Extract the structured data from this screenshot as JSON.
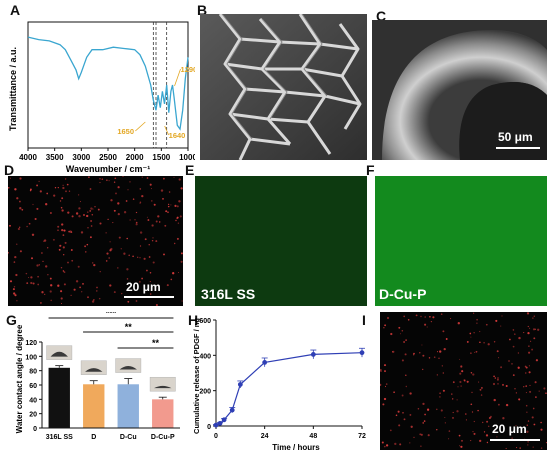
{
  "panels": {
    "A": "A",
    "B": "B",
    "C": "C",
    "D": "D",
    "E": "E",
    "F": "F",
    "G": "G",
    "H": "H",
    "I": "I"
  },
  "colors": {
    "ftir_line": "#3aa6d0",
    "ftir_annot": "#e3a825",
    "bar_316L": "#111111",
    "bar_D": "#f0a95c",
    "bar_DCu": "#8fb1dc",
    "bar_DCuP": "#f29a8e",
    "release_line": "#2f3fb5",
    "dot_red": "#d43a3a",
    "green_E": "#0d3a10",
    "green_F": "#138a1e"
  },
  "images": {
    "C_scale": "50 μm",
    "D_scale": "20 μm",
    "E_label": "316L SS",
    "F_label": "D-Cu-P",
    "I_scale": "20 μm"
  },
  "chart_data": [
    {
      "type": "line",
      "panel": "A",
      "xlabel": "Wavenumber / cm⁻¹",
      "ylabel": "Transmittance / a.u.",
      "xlim": [
        4000,
        1000
      ],
      "x_ticks": [
        "4000",
        "3500",
        "3000",
        "2500",
        "2000",
        "1500",
        "1000"
      ],
      "x": [
        4000,
        3800,
        3600,
        3400,
        3300,
        3200,
        3100,
        3050,
        3000,
        2950,
        2900,
        2850,
        2800,
        2600,
        2400,
        2200,
        2000,
        1900,
        1800,
        1700,
        1650,
        1600,
        1560,
        1520,
        1480,
        1440,
        1400,
        1360,
        1320,
        1290,
        1260,
        1200,
        1150,
        1100,
        1050,
        1000
      ],
      "y": [
        0.88,
        0.86,
        0.85,
        0.82,
        0.78,
        0.7,
        0.62,
        0.55,
        0.6,
        0.66,
        0.72,
        0.75,
        0.78,
        0.78,
        0.8,
        0.79,
        0.78,
        0.74,
        0.65,
        0.5,
        0.38,
        0.3,
        0.42,
        0.32,
        0.45,
        0.35,
        0.5,
        0.28,
        0.45,
        0.5,
        0.4,
        0.18,
        0.15,
        0.3,
        0.55,
        0.72
      ],
      "dashed_lines": [
        1650,
        1600,
        1400
      ],
      "annotations": [
        {
          "text": "1290",
          "x": 1290
        },
        {
          "text": "1650",
          "x": 1650
        },
        {
          "text": "1640",
          "x": 1400
        }
      ]
    },
    {
      "type": "bar",
      "panel": "G",
      "categories": [
        "316L SS",
        "D",
        "D-Cu",
        "D-Cu-P"
      ],
      "values": [
        84,
        61,
        61,
        40
      ],
      "errors": [
        3,
        5,
        8,
        3
      ],
      "ylabel": "Water contact angle / degree",
      "ylim": [
        0,
        120
      ],
      "y_ticks": [
        "0",
        "20",
        "40",
        "60",
        "80",
        "100",
        "120"
      ],
      "significance": [
        {
          "from": 0,
          "to": 3,
          "label": "***"
        },
        {
          "from": 1,
          "to": 3,
          "label": "**"
        },
        {
          "from": 2,
          "to": 3,
          "label": "**"
        }
      ]
    },
    {
      "type": "line",
      "panel": "H",
      "x": [
        0,
        2,
        4,
        8,
        12,
        24,
        48,
        72
      ],
      "y": [
        5,
        15,
        35,
        90,
        235,
        360,
        405,
        415
      ],
      "errors": [
        3,
        5,
        8,
        15,
        20,
        25,
        25,
        25
      ],
      "xlabel": "Time / hours",
      "ylabel": "Cumulative release of PDGF / ng",
      "xlim": [
        0,
        72
      ],
      "ylim": [
        0,
        600
      ],
      "x_ticks": [
        "0",
        "24",
        "48",
        "72"
      ],
      "y_ticks": [
        "0",
        "200",
        "400",
        "600"
      ]
    }
  ]
}
